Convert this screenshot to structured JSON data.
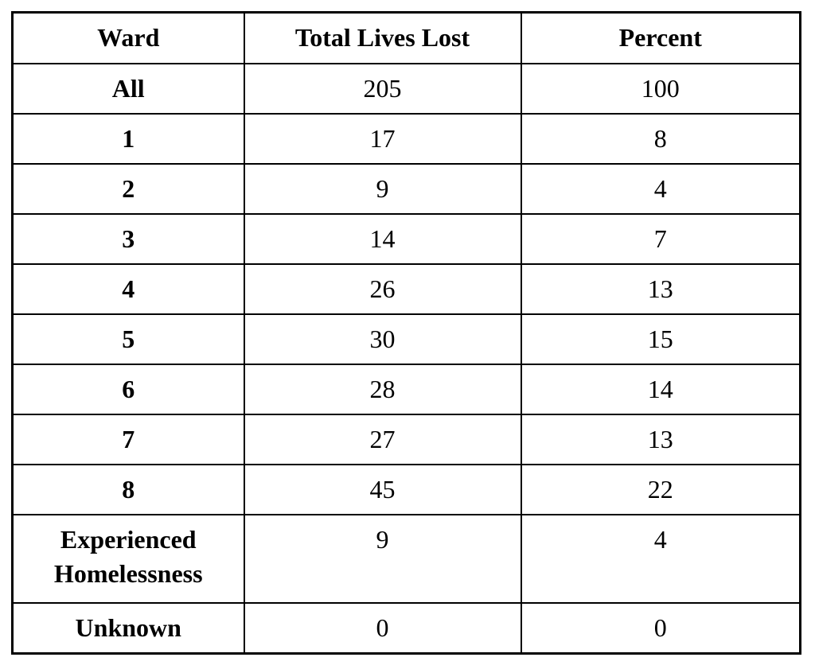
{
  "table": {
    "columns": [
      "Ward",
      "Total Lives Lost",
      "Percent"
    ],
    "rows": [
      {
        "ward": "All",
        "total_lives_lost": "205",
        "percent": "100"
      },
      {
        "ward": "1",
        "total_lives_lost": "17",
        "percent": "8"
      },
      {
        "ward": "2",
        "total_lives_lost": "9",
        "percent": "4"
      },
      {
        "ward": "3",
        "total_lives_lost": "14",
        "percent": "7"
      },
      {
        "ward": "4",
        "total_lives_lost": "26",
        "percent": "13"
      },
      {
        "ward": "5",
        "total_lives_lost": "30",
        "percent": "15"
      },
      {
        "ward": "6",
        "total_lives_lost": "28",
        "percent": "14"
      },
      {
        "ward": "7",
        "total_lives_lost": "27",
        "percent": "13"
      },
      {
        "ward": "8",
        "total_lives_lost": "45",
        "percent": "22"
      },
      {
        "ward": "Experienced Homelessness",
        "total_lives_lost": "9",
        "percent": "4"
      },
      {
        "ward": "Unknown",
        "total_lives_lost": "0",
        "percent": "0"
      }
    ],
    "colors": {
      "border": "#000000",
      "text": "#000000",
      "background": "#ffffff"
    }
  }
}
